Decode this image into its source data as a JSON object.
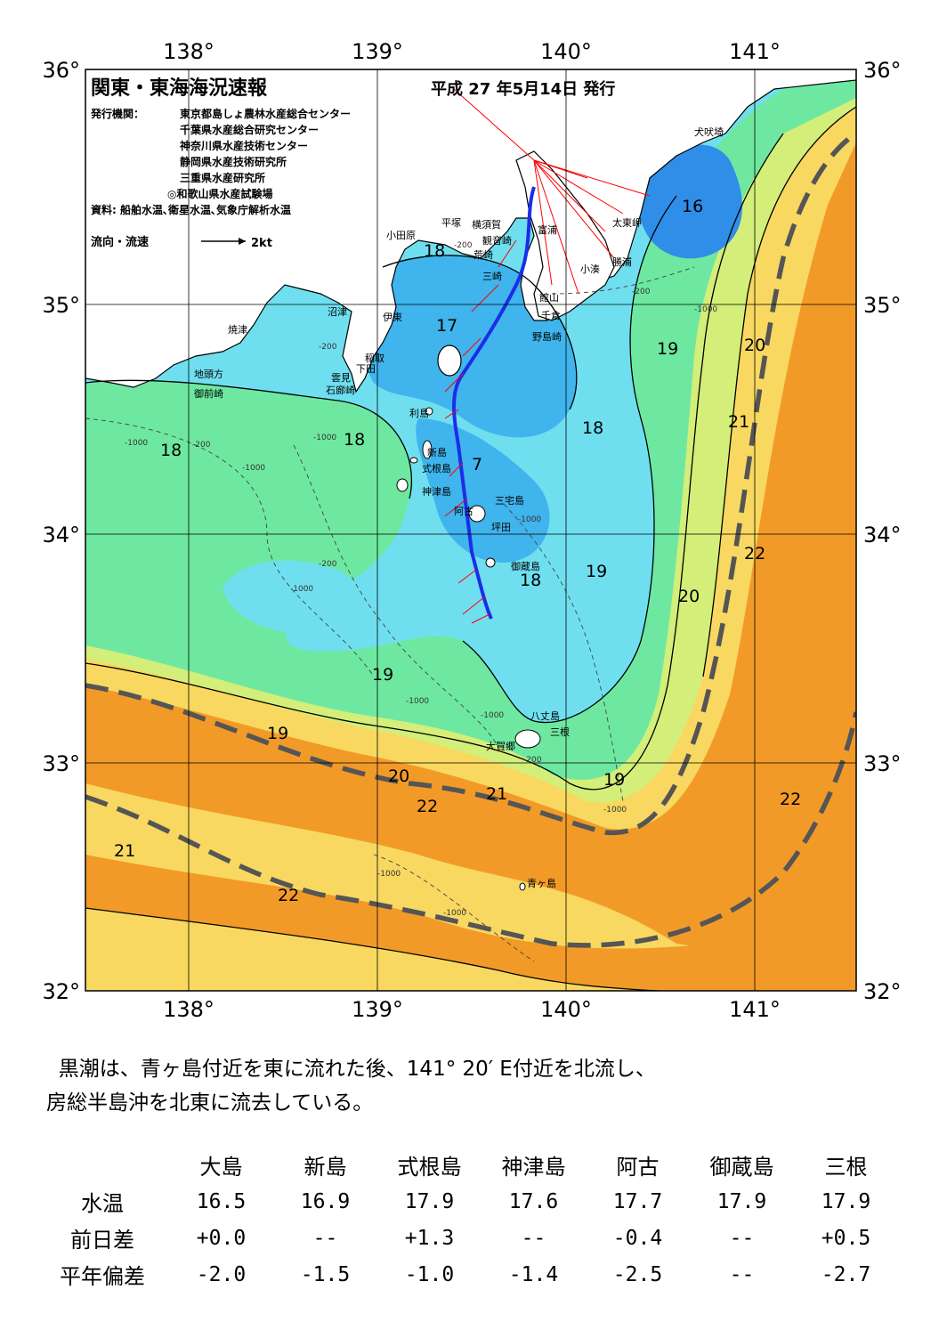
{
  "header": {
    "title": "関東・東海海況速報",
    "date": "平成 27 年5月14日 発行",
    "publisher_label": "発行機関：",
    "publishers": [
      "東京都島しょ農林水産総合センター",
      "千葉県水産総合研究センター",
      "神奈川県水産技術センター",
      "静岡県水産技術研究所",
      "三重県水産研究所",
      "◎和歌山県水産試験場"
    ],
    "source": "資料: 船舶水温､衛星水温､気象庁解析水温"
  },
  "legend": {
    "label": "流向・流速",
    "scale": "2kt"
  },
  "axes": {
    "longitudes": [
      "138°",
      "139°",
      "140°",
      "141°"
    ],
    "latitudes": [
      "36°",
      "35°",
      "34°",
      "33°",
      "32°"
    ]
  },
  "places": {
    "inubozaki": "犬吠埼",
    "taitozaki": "太東岬",
    "katsuura": "勝浦",
    "kominato": "小湊",
    "tateyama": "館山",
    "chikura": "千倉",
    "nojimazaki": "野島崎",
    "tomiura": "富浦",
    "yokosuka": "横須賀",
    "kannonzaki": "観音崎",
    "arasaki": "荒崎",
    "misaki": "三崎",
    "hiratsuka": "平塚",
    "odawara": "小田原",
    "numazu": "沼津",
    "ito": "伊東",
    "inatori": "稲取",
    "shimoda": "下田",
    "kumomi": "雲見",
    "irozaki": "石廊崎",
    "yaizu": "焼津",
    "jitogata": "地頭方",
    "omaezaki": "御前崎",
    "toshima": "利島",
    "niijima": "新島",
    "shikinejima": "式根島",
    "kozushima": "神津島",
    "ako": "阿古",
    "miyakejima": "三宅島",
    "tsubota": "坪田",
    "mikurajima": "御蔵島",
    "hachijojima": "八丈島",
    "mitsune": "三根",
    "okago": "大賀郷",
    "aogashima": "青ヶ島"
  },
  "isotherm_labels": {
    "t16": "16",
    "t17": "17",
    "t18": "18",
    "t19": "19",
    "t20": "20",
    "t21": "21",
    "t22": "22",
    "t7": "7"
  },
  "depth_labels": {
    "d200": "-200",
    "d1000": "-1000"
  },
  "colors": {
    "t16": "#2f8ee8",
    "t17": "#40b4ec",
    "t18": "#6fdff0",
    "t19": "#6ee8a0",
    "t20": "#d4ee7a",
    "t21": "#f8d860",
    "t22": "#f29a28",
    "land": "#ffffff",
    "kuroshio": "#555555",
    "current_vector": "#ff0000",
    "ship_track": "#1a2ee8"
  },
  "summary": {
    "line1": "黒潮は、青ヶ島付近を東に流れた後、141° 20′ E付近を北流し、",
    "line2": "房総半島沖を北東に流去している。"
  },
  "table": {
    "columns": [
      "大島",
      "新島",
      "式根島",
      "神津島",
      "阿古",
      "御蔵島",
      "三根"
    ],
    "rows": [
      {
        "label": "水温",
        "values": [
          "16.5",
          "16.9",
          "17.9",
          "17.6",
          "17.7",
          "17.9",
          "17.9"
        ]
      },
      {
        "label": "前日差",
        "values": [
          "+0.0",
          "--",
          "+1.3",
          "--",
          "-0.4",
          "--",
          "+0.5"
        ]
      },
      {
        "label": "平年偏差",
        "values": [
          "-2.0",
          "-1.5",
          "-1.0",
          "-1.4",
          "-2.5",
          "--",
          "-2.7"
        ]
      }
    ]
  }
}
